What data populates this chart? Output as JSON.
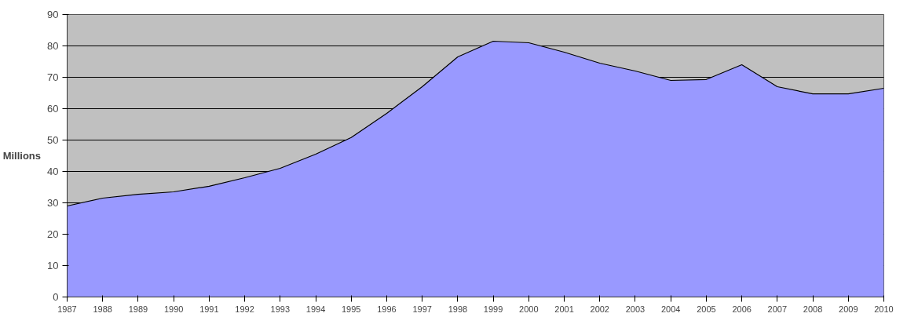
{
  "chart_data": {
    "type": "area",
    "ylabel": "Millions",
    "x": [
      1987,
      1988,
      1989,
      1990,
      1991,
      1992,
      1993,
      1994,
      1995,
      1996,
      1997,
      1998,
      1999,
      2000,
      2001,
      2002,
      2003,
      2004,
      2005,
      2006,
      2007,
      2008,
      2009,
      2010
    ],
    "series": [
      {
        "color": "#9999ff",
        "values": [
          29,
          31.5,
          32.7,
          33.5,
          35.3,
          38,
          41,
          45.5,
          50.8,
          58.5,
          67,
          76.5,
          81.5,
          81,
          78,
          74.5,
          72,
          69,
          69.3,
          74,
          67,
          64.7,
          64.7,
          66.5
        ]
      }
    ],
    "xlim": [
      1987,
      2010
    ],
    "ylim": [
      0,
      90
    ],
    "xticks": [
      1987,
      1988,
      1989,
      1990,
      1991,
      1992,
      1993,
      1994,
      1995,
      1996,
      1997,
      1998,
      1999,
      2000,
      2001,
      2002,
      2003,
      2004,
      2005,
      2006,
      2007,
      2008,
      2009,
      2010
    ],
    "yticks": [
      0,
      10,
      20,
      30,
      40,
      50,
      60,
      70,
      80,
      90
    ],
    "grid": "y"
  }
}
